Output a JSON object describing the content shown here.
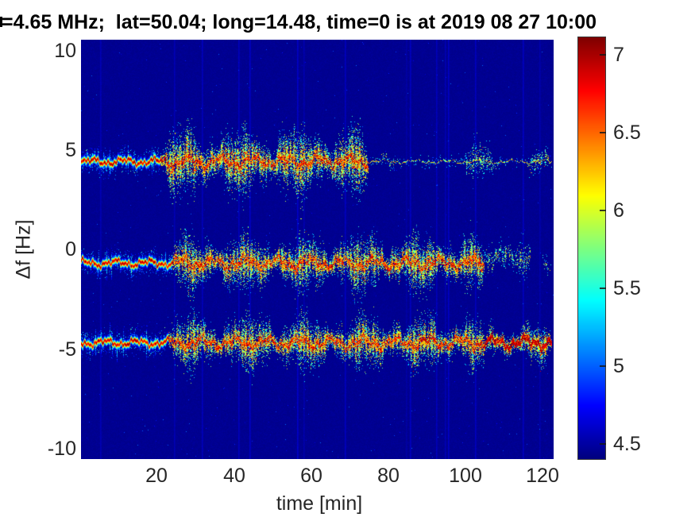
{
  "chart_data": {
    "type": "heatmap",
    "subtype": "doppler-spectrogram",
    "title": "=4.65 MHz;  lat=50.04; long=14.48, time=0 is at 2019 08 27 10:00",
    "xlabel": "time [min]",
    "ylabel": "Δf [Hz]",
    "xlim": [
      0,
      122.5
    ],
    "ylim": [
      -10.6,
      10.6
    ],
    "xticks": [
      "20",
      "40",
      "60",
      "80",
      "100",
      "120"
    ],
    "yticks": [
      "10",
      "5",
      "0",
      "-5",
      "-10"
    ],
    "grid": false,
    "colorbar": {
      "position": "right",
      "ticks": [
        "7",
        "6.5",
        "6",
        "5.5",
        "5",
        "4.5"
      ],
      "clim": [
        4.4,
        7.1
      ],
      "colormap": "jet"
    },
    "background_value": 4.43,
    "colors": {
      "page_background": "#ffffff",
      "plot_background_min": "#000090",
      "text": "#262626",
      "title_text": "#000000"
    },
    "bands": [
      {
        "name": "upper-doppler-trace",
        "center_hz": 4.45,
        "segments": [
          {
            "mode": "narrow",
            "t0": 0,
            "t1": 21
          },
          {
            "mode": "spread",
            "t0": 21,
            "t1": 75,
            "width_hz": 1.25
          },
          {
            "mode": "faint_line",
            "t0": 75,
            "t1": 122.5
          },
          {
            "mode": "patch",
            "t0": 76,
            "t1": 82,
            "width_hz": 0.5,
            "density": 0.35
          },
          {
            "mode": "patch",
            "t0": 100,
            "t1": 109,
            "width_hz": 0.8,
            "density": 0.55
          },
          {
            "mode": "patch",
            "t0": 116,
            "t1": 122.3,
            "width_hz": 0.55,
            "density": 0.5
          }
        ]
      },
      {
        "name": "middle-doppler-trace",
        "center_hz": -0.65,
        "segments": [
          {
            "mode": "narrow",
            "t0": 0,
            "t1": 24
          },
          {
            "mode": "spread",
            "t0": 24,
            "t1": 105,
            "width_hz": 1.05
          },
          {
            "mode": "patch",
            "t0": 105,
            "t1": 117,
            "width_hz": 0.85,
            "offset_hz": 0.3,
            "density": 0.6
          },
          {
            "mode": "patch",
            "t0": 120,
            "t1": 122.4,
            "width_hz": 0.5,
            "density": 0.5
          }
        ]
      },
      {
        "name": "lower-doppler-trace",
        "center_hz": -4.65,
        "segments": [
          {
            "mode": "narrow",
            "t0": 0,
            "t1": 23
          },
          {
            "mode": "spread",
            "t0": 23,
            "t1": 105,
            "width_hz": 1.0
          },
          {
            "mode": "spread",
            "t0": 105,
            "t1": 122.4,
            "width_hz": 0.7,
            "core_boost": true
          }
        ]
      }
    ]
  }
}
